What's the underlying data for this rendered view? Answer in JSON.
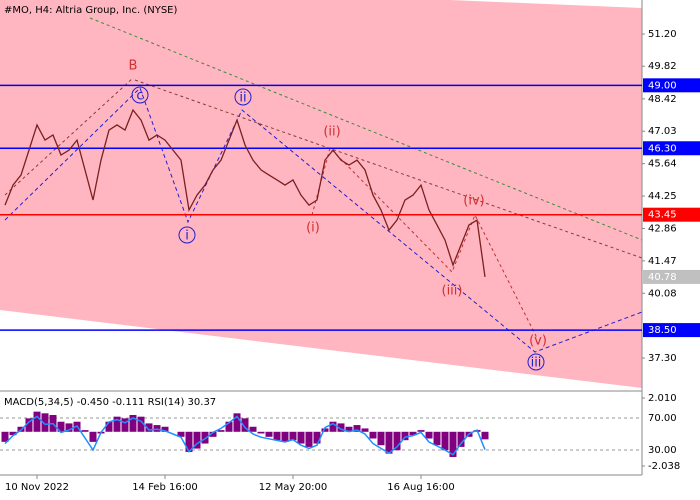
{
  "chart_data": [
    {
      "type": "line",
      "title": "#MO, H4:  Altria Group, Inc. (NYSE)",
      "color": "#7a2020",
      "categories": [
        null,
        null,
        null,
        null,
        "10 Nov 2022",
        null,
        null,
        null,
        null,
        null,
        null,
        null,
        null,
        null,
        null,
        null,
        null,
        null,
        null,
        null,
        "14 Feb 16:00",
        null,
        null,
        null,
        null,
        null,
        null,
        null,
        null,
        null,
        null,
        null,
        null,
        null,
        null,
        null,
        "12 May 20:00",
        null,
        null,
        null,
        null,
        null,
        null,
        null,
        null,
        null,
        null,
        null,
        null,
        null,
        null,
        null,
        "16 Aug 16:00",
        null,
        null,
        null,
        null,
        null,
        null,
        null,
        null
      ],
      "values": [
        43.86,
        44.72,
        45.15,
        46.22,
        47.3,
        46.65,
        46.87,
        46.01,
        46.22,
        46.65,
        45.37,
        44.08,
        45.79,
        47.08,
        47.3,
        47.08,
        47.94,
        47.51,
        46.65,
        46.87,
        46.65,
        46.22,
        45.79,
        43.65,
        44.29,
        44.72,
        45.37,
        45.79,
        46.65,
        47.51,
        46.44,
        45.79,
        45.37,
        45.15,
        44.94,
        44.72,
        44.94,
        44.29,
        43.86,
        44.08,
        45.79,
        46.22,
        45.79,
        45.58,
        45.79,
        45.37,
        44.29,
        43.65,
        42.79,
        43.22,
        44.08,
        44.29,
        44.72,
        43.65,
        43.01,
        42.36,
        41.29,
        42.15,
        43.01,
        43.22,
        40.78
      ],
      "ylim": [
        35.93,
        52.66
      ],
      "yticks": [
        {
          "value": 51.2,
          "label": "51.20"
        },
        {
          "value": 49.82,
          "label": "49.82"
        },
        {
          "value": 48.42,
          "label": "48.42"
        },
        {
          "value": 47.03,
          "label": "47.03"
        },
        {
          "value": 45.64,
          "label": "45.64"
        },
        {
          "value": 44.25,
          "label": "44.25"
        },
        {
          "value": 42.86,
          "label": "42.86"
        },
        {
          "value": 41.47,
          "label": "41.47"
        },
        {
          "value": 40.08,
          "label": "40.08"
        },
        {
          "value": 37.3,
          "label": "37.30"
        }
      ],
      "levels": [
        {
          "value": 49.0,
          "label": "49.00",
          "color": "#0000ff"
        },
        {
          "value": 46.3,
          "label": "46.30",
          "color": "#0000ff"
        },
        {
          "value": 43.45,
          "label": "43.45",
          "color": "#ff0000"
        },
        {
          "value": 38.5,
          "label": "38.50",
          "color": "#0000ff"
        }
      ],
      "last_price": {
        "value": 40.78,
        "label": "40.78",
        "color": "#c0c0c0"
      },
      "annotations": [
        {
          "text": "B",
          "color": "#d03030",
          "circled": false
        },
        {
          "text": "c",
          "color": "#2020d0",
          "circled": true
        },
        {
          "text": "ii",
          "color": "#2020d0",
          "circled": true
        },
        {
          "text": "(ii)",
          "color": "#d03030",
          "circled": false
        },
        {
          "text": "(iv)",
          "color": "#d03030",
          "circled": false
        },
        {
          "text": "i",
          "color": "#2020d0",
          "circled": true
        },
        {
          "text": "(i)",
          "color": "#d03030",
          "circled": false
        },
        {
          "text": "(iii)",
          "color": "#d03030",
          "circled": false
        },
        {
          "text": "(v)",
          "color": "#d03030",
          "circled": false
        },
        {
          "text": "iii",
          "color": "#2020d0",
          "circled": true
        }
      ]
    },
    {
      "type": "bar",
      "title": "MACD(5,34,5) -0.450 -0.111 RSI(14) 30.37",
      "ylim": [
        -2.395,
        2.37
      ],
      "yticks": [
        {
          "value": 2.01,
          "label": "2.010"
        },
        {
          "value": -2.038,
          "label": "-2.038"
        }
      ],
      "y2lim": [
        2.5,
        102.5
      ],
      "y2ticks": [
        {
          "value": 70,
          "label": "70.00"
        },
        {
          "value": 30,
          "label": "30.00"
        }
      ],
      "series": [
        {
          "color": "#800080",
          "values": [
            -0.6,
            -0.2,
            0.3,
            0.8,
            1.2,
            1.1,
            1.0,
            0.6,
            0.5,
            0.6,
            0.1,
            -0.6,
            -0.1,
            0.6,
            0.9,
            0.8,
            1.0,
            0.9,
            0.5,
            0.4,
            0.3,
            0.0,
            -0.3,
            -1.2,
            -1.0,
            -0.7,
            -0.3,
            0.1,
            0.6,
            1.1,
            0.8,
            0.3,
            -0.1,
            -0.3,
            -0.5,
            -0.6,
            -0.5,
            -0.7,
            -0.9,
            -0.7,
            0.2,
            0.6,
            0.5,
            0.3,
            0.4,
            0.2,
            -0.4,
            -0.8,
            -1.3,
            -1.1,
            -0.5,
            -0.2,
            0.1,
            -0.4,
            -0.8,
            -1.1,
            -1.5,
            -0.9,
            -0.3,
            0.1,
            -0.45
          ]
        },
        {
          "color": "#1e90ff",
          "axis": "y2",
          "type": "line",
          "values": [
            38,
            48,
            55,
            65,
            72,
            62,
            63,
            52,
            55,
            60,
            45,
            30,
            52,
            65,
            68,
            64,
            70,
            66,
            55,
            56,
            54,
            50,
            46,
            28,
            38,
            44,
            52,
            57,
            64,
            72,
            58,
            50,
            46,
            44,
            42,
            40,
            43,
            36,
            32,
            36,
            58,
            63,
            56,
            53,
            55,
            50,
            38,
            32,
            26,
            34,
            46,
            48,
            52,
            40,
            35,
            30,
            24,
            38,
            50,
            55,
            30.37
          ]
        }
      ]
    }
  ]
}
